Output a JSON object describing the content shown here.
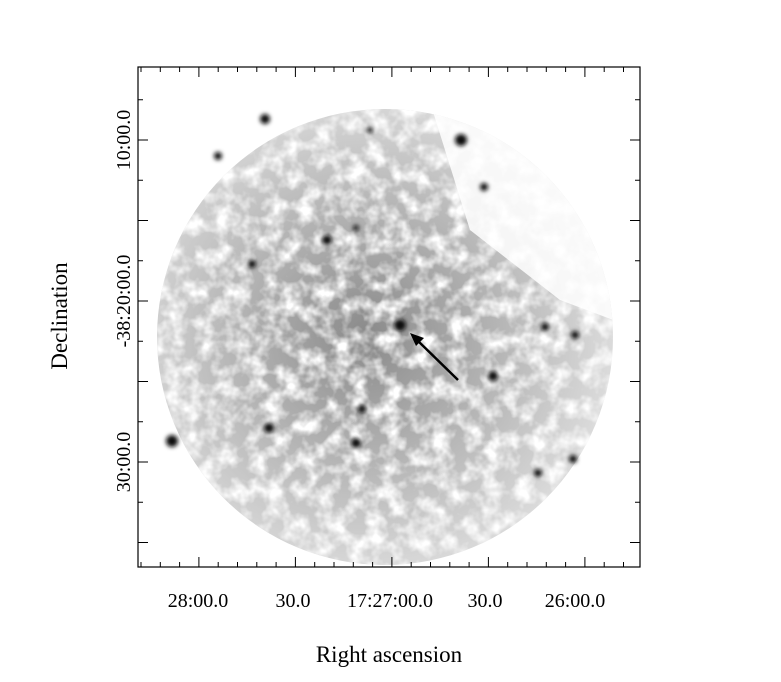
{
  "x_axis": {
    "label": "Right ascension",
    "ticks": [
      "28:00.0",
      "30.0",
      "17:27:00.0",
      "30.0",
      "26:00.0"
    ]
  },
  "y_axis": {
    "label": "Declination",
    "ticks": [
      "10:00.0",
      "-38:20:00.0",
      "30:00.0"
    ]
  }
}
